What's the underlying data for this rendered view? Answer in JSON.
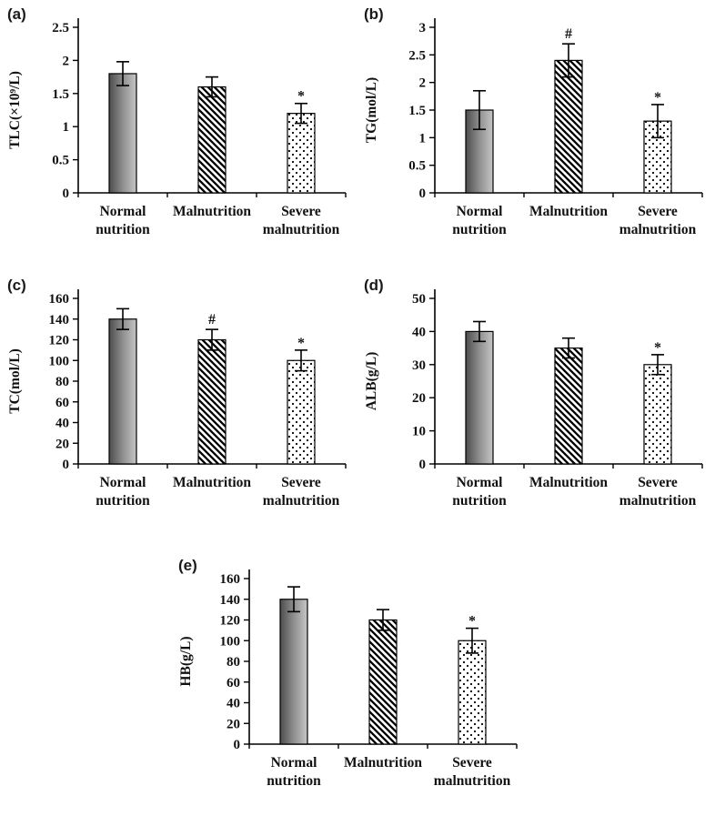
{
  "figure": {
    "background": "#ffffff",
    "axis_color": "#000000",
    "bar_patterns": [
      "gradient-gray",
      "diagonal-hatch",
      "dotted"
    ]
  },
  "chart_data": [
    {
      "panel": "(a)",
      "type": "bar",
      "ylabel": "TLC(×10⁹/L)",
      "categories": [
        "Normal\nnutrition",
        "Malnutrition",
        "Severe\nmalnutrition"
      ],
      "values": [
        1.8,
        1.6,
        1.2
      ],
      "errors": [
        0.18,
        0.15,
        0.15
      ],
      "annotations": [
        "",
        "",
        "*"
      ],
      "ylim": [
        0,
        2.5
      ],
      "yticks": [
        0,
        0.5,
        1,
        1.5,
        2,
        2.5
      ],
      "grid": false,
      "legend": "none"
    },
    {
      "panel": "(b)",
      "type": "bar",
      "ylabel": "TG(mol/L)",
      "categories": [
        "Normal\nnutrition",
        "Malnutrition",
        "Severe\nmalnutrition"
      ],
      "values": [
        1.5,
        2.4,
        1.3
      ],
      "errors": [
        0.35,
        0.3,
        0.3
      ],
      "annotations": [
        "",
        "#",
        "*"
      ],
      "ylim": [
        0,
        3
      ],
      "yticks": [
        0,
        0.5,
        1,
        1.5,
        2,
        2.5,
        3
      ],
      "grid": false,
      "legend": "none"
    },
    {
      "panel": "(c)",
      "type": "bar",
      "ylabel": "TC(mol/L)",
      "categories": [
        "Normal\nnutrition",
        "Malnutrition",
        "Severe\nmalnutrition"
      ],
      "values": [
        140,
        120,
        100
      ],
      "errors": [
        10,
        10,
        10
      ],
      "annotations": [
        "",
        "#",
        "*"
      ],
      "ylim": [
        0,
        160
      ],
      "yticks": [
        0,
        20,
        40,
        60,
        80,
        100,
        120,
        140,
        160
      ],
      "grid": false,
      "legend": "none"
    },
    {
      "panel": "(d)",
      "type": "bar",
      "ylabel": "ALB(g/L)",
      "categories": [
        "Normal\nnutrition",
        "Malnutrition",
        "Severe\nmalnutrition"
      ],
      "values": [
        40,
        35,
        30
      ],
      "errors": [
        3,
        3,
        3
      ],
      "annotations": [
        "",
        "",
        "*"
      ],
      "ylim": [
        0,
        50
      ],
      "yticks": [
        0,
        10,
        20,
        30,
        40,
        50
      ],
      "grid": false,
      "legend": "none"
    },
    {
      "panel": "(e)",
      "type": "bar",
      "ylabel": "HB(g/L)",
      "categories": [
        "Normal\nnutrition",
        "Malnutrition",
        "Severe\nmalnutrition"
      ],
      "values": [
        140,
        120,
        100
      ],
      "errors": [
        12,
        10,
        12
      ],
      "annotations": [
        "",
        "",
        "*"
      ],
      "ylim": [
        0,
        160
      ],
      "yticks": [
        0,
        20,
        40,
        60,
        80,
        100,
        120,
        140,
        160
      ],
      "grid": false,
      "legend": "none"
    }
  ]
}
